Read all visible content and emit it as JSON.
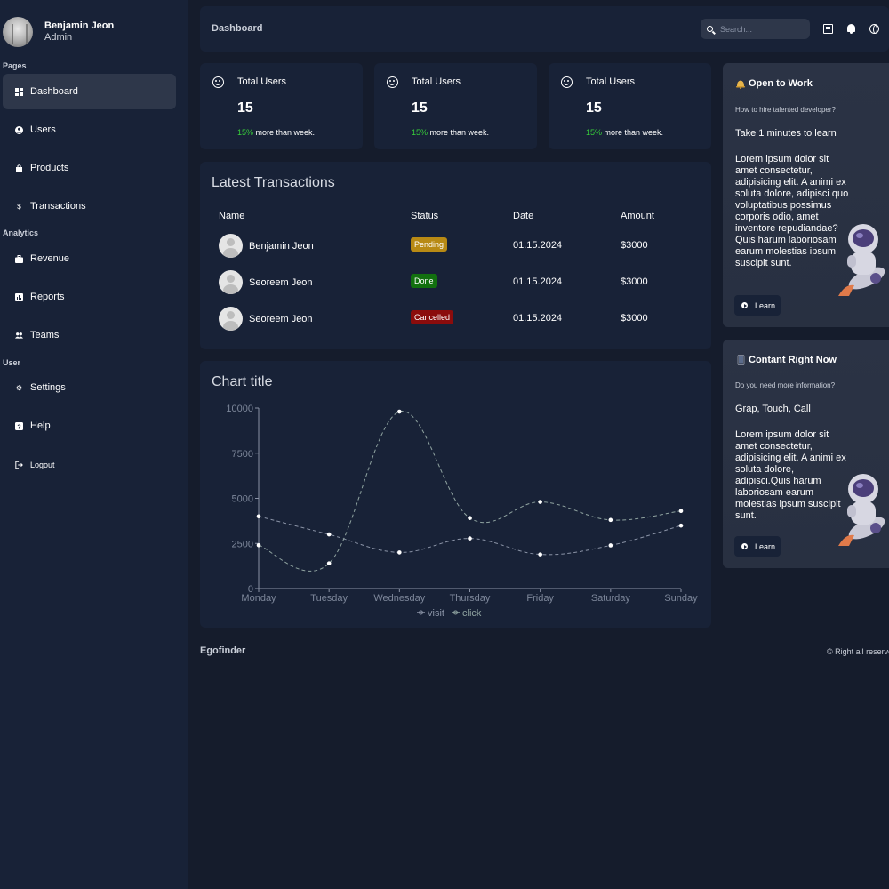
{
  "sidebar": {
    "user": {
      "name": "Benjamin Jeon",
      "role": "Admin"
    },
    "sections": [
      {
        "label": "Pages",
        "items": [
          {
            "label": "Dashboard",
            "icon": "dashboard-icon",
            "active": true
          },
          {
            "label": "Users",
            "icon": "user-circle-icon"
          },
          {
            "label": "Products",
            "icon": "shopping-bag-icon"
          },
          {
            "label": "Transactions",
            "icon": "dollar-icon"
          }
        ]
      },
      {
        "label": "Analytics",
        "items": [
          {
            "label": "Revenue",
            "icon": "briefcase-icon"
          },
          {
            "label": "Reports",
            "icon": "bar-chart-icon"
          },
          {
            "label": "Teams",
            "icon": "people-icon"
          }
        ]
      },
      {
        "label": "User",
        "items": [
          {
            "label": "Settings",
            "icon": "gear-icon"
          },
          {
            "label": "Help",
            "icon": "help-icon"
          },
          {
            "label": "Logout",
            "icon": "logout-icon"
          }
        ]
      }
    ]
  },
  "topbar": {
    "title": "Dashboard",
    "search_placeholder": "Search..."
  },
  "stats": [
    {
      "title": "Total Users",
      "value": "15",
      "pct": "15%",
      "detail": " more than week."
    },
    {
      "title": "Total Users",
      "value": "15",
      "pct": "15%",
      "detail": " more than week."
    },
    {
      "title": "Total Users",
      "value": "15",
      "pct": "15%",
      "detail": " more than week."
    }
  ],
  "transactions": {
    "title": "Latest Transactions",
    "headers": [
      "Name",
      "Status",
      "Date",
      "Amount"
    ],
    "rows": [
      {
        "name": "Benjamin Jeon",
        "status": "Pending",
        "status_color": "#b88a14",
        "date": "01.15.2024",
        "amount": "$3000"
      },
      {
        "name": "Seoreem Jeon",
        "status": "Done",
        "status_color": "#12700f",
        "date": "01.15.2024",
        "amount": "$3000"
      },
      {
        "name": "Seoreem Jeon",
        "status": "Cancelled",
        "status_color": "#8b0c0c",
        "date": "01.15.2024",
        "amount": "$3000"
      }
    ]
  },
  "chart_data": {
    "type": "line",
    "title": "Chart title",
    "categories": [
      "Monday",
      "Tuesday",
      "Wednesday",
      "Thursday",
      "Friday",
      "Saturday",
      "Sunday"
    ],
    "ylim": [
      0,
      10000
    ],
    "yticks": [
      "0",
      "2500",
      "5000",
      "7500",
      "10000"
    ],
    "series": [
      {
        "name": "visit",
        "values": [
          4000,
          3000,
          2000,
          2780,
          1890,
          2390,
          3490
        ],
        "color": "#8a93a6"
      },
      {
        "name": "click",
        "values": [
          2400,
          1398,
          9800,
          3908,
          4800,
          3800,
          4300
        ],
        "color": "#8fa3a0"
      }
    ],
    "legend": "bottom"
  },
  "footer": {
    "logo": "Egofinder",
    "copyright": "© Right all reserved."
  },
  "promos": [
    {
      "title": "Open to Work",
      "emoji": "bell",
      "subtitle": "How to hire talented developer?",
      "heading": "Take 1 minutes to learn",
      "description": "Lorem ipsum dolor sit amet consectetur, adipisicing elit. A animi ex soluta dolore, adipisci quo voluptatibus possimus corporis odio, amet inventore repudiandae? Quis harum laboriosam earum molestias ipsum suscipit sunt.",
      "button": "Learn"
    },
    {
      "title": "Contant Right Now",
      "emoji": "phone",
      "subtitle": "Do you need more information?",
      "heading": "Grap, Touch, Call",
      "description": "Lorem ipsum dolor sit amet consectetur, adipisicing elit. A animi ex soluta dolore, adipisci.Quis harum laboriosam earum molestias ipsum suscipit sunt.",
      "button": "Learn"
    }
  ]
}
